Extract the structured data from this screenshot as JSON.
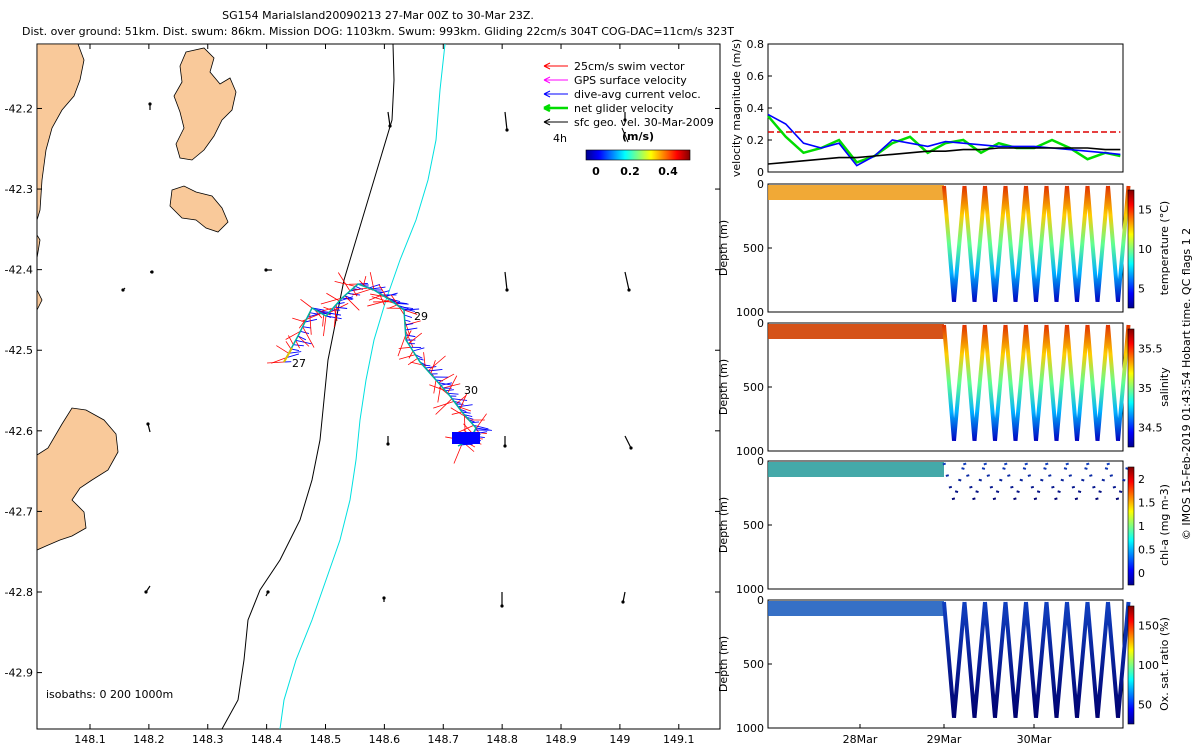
{
  "title_line1": "SG154 MarialsIand20090213 27-Mar 00Z to 30-Mar 23Z.",
  "title_line2": "Dist. over ground: 51km. Dist. swum: 86km. Mission DOG: 1103km. Swum: 993km. Gliding 22cm/s 304T COG-DAC=11cm/s 323T",
  "side_label": "© IMOS 15-Feb-2019 01:43:54 Hobart time. QC flags 1  2",
  "colors": {
    "land": "#f9c99a",
    "track_red": "#ff0000",
    "track_blue": "#0000ff",
    "isobath_200": "#000000",
    "isobath_1000": "#00e5e5",
    "net_velocity": "#00dd00",
    "swim_limit": "#dd0000"
  },
  "map": {
    "lon_ticks": [
      "148.1",
      "148.2",
      "148.3",
      "148.4",
      "148.5",
      "148.6",
      "148.7",
      "148.8",
      "148.9",
      "149",
      "149.1"
    ],
    "lat_ticks": [
      "-42.2",
      "-42.3",
      "-42.4",
      "-42.5",
      "-42.6",
      "-42.7",
      "-42.8",
      "-42.9"
    ],
    "xlim": [
      148.01,
      149.17
    ],
    "ylim": [
      -42.97,
      -42.12
    ],
    "isobaths_label": "isobaths: 0   200   1000m",
    "day_labels": [
      "27",
      "29",
      "30"
    ],
    "legend": [
      {
        "label": "25cm/s swim vector",
        "color": "#ff0000"
      },
      {
        "label": "GPS surface velocity",
        "color": "#ff00ff"
      },
      {
        "label": "dive-avg current veloc.",
        "color": "#0000ff"
      },
      {
        "label": "net glider velocity",
        "color": "#00dd00"
      },
      {
        "label": "sfc geo. vel. 30-Mar-2009",
        "color": "#000000"
      }
    ],
    "scale_label": "4h",
    "colorbar_label": "(m/s)",
    "colorbar_ticks": [
      "0",
      "0.2",
      "0.4"
    ]
  },
  "chart_data": [
    {
      "type": "line",
      "title": "",
      "ylabel": "velocity magnitude (m/s)",
      "ylim": [
        0,
        0.8
      ],
      "yticks": [
        "0",
        "0.2",
        "0.4",
        "0.6",
        "0.8"
      ],
      "x_days": [
        0,
        0.2,
        0.4,
        0.6,
        0.8,
        1.0,
        1.2,
        1.4,
        1.6,
        1.8,
        2.0,
        2.2,
        2.4,
        2.6,
        2.8,
        3.0,
        3.2,
        3.4,
        3.6,
        3.8,
        3.97
      ],
      "series": [
        {
          "color": "#dd0000",
          "values": [
            0.25,
            0.25,
            0.25,
            0.25,
            0.25,
            0.25,
            0.25,
            0.25,
            0.25,
            0.25,
            0.25,
            0.25,
            0.25,
            0.25,
            0.25,
            0.25,
            0.25,
            0.25,
            0.25,
            0.25,
            0.25
          ]
        },
        {
          "color": "#00dd00",
          "values": [
            0.35,
            0.22,
            0.12,
            0.15,
            0.2,
            0.06,
            0.1,
            0.18,
            0.22,
            0.12,
            0.18,
            0.2,
            0.12,
            0.18,
            0.15,
            0.15,
            0.2,
            0.15,
            0.08,
            0.12,
            0.1
          ]
        },
        {
          "color": "#0000ff",
          "values": [
            0.36,
            0.3,
            0.18,
            0.15,
            0.18,
            0.04,
            0.1,
            0.2,
            0.18,
            0.16,
            0.19,
            0.18,
            0.17,
            0.16,
            0.16,
            0.16,
            0.15,
            0.14,
            0.13,
            0.12,
            0.11
          ]
        },
        {
          "color": "#000000",
          "values": [
            0.05,
            0.06,
            0.07,
            0.08,
            0.09,
            0.09,
            0.1,
            0.11,
            0.12,
            0.13,
            0.13,
            0.14,
            0.14,
            0.15,
            0.15,
            0.15,
            0.15,
            0.15,
            0.15,
            0.14,
            0.14
          ]
        }
      ]
    },
    {
      "type": "scatter",
      "ylabel": "Depth (m)",
      "yticks": [
        "0",
        "500",
        "1000"
      ],
      "cbar_label": "temperature (°C)",
      "cbar_ticks": [
        "5",
        "10",
        "15"
      ]
    },
    {
      "type": "scatter",
      "ylabel": "Depth (m)",
      "yticks": [
        "0",
        "500",
        "1000"
      ],
      "cbar_label": "salinity",
      "cbar_ticks": [
        "34.5",
        "35",
        "35.5"
      ]
    },
    {
      "type": "scatter",
      "ylabel": "Depth (m)",
      "yticks": [
        "0",
        "500",
        "1000"
      ],
      "cbar_label": "chl-a (mg m-3)",
      "cbar_ticks": [
        "0",
        "0.5",
        "1",
        "1.5",
        "2"
      ]
    },
    {
      "type": "scatter",
      "ylabel": "Depth (m)",
      "yticks": [
        "0",
        "500",
        "1000"
      ],
      "cbar_label": "Ox. sat. ratio (%)",
      "cbar_ticks": [
        "50",
        "100",
        "150"
      ],
      "xticks": [
        "28Mar",
        "29Mar",
        "30Mar"
      ]
    }
  ]
}
